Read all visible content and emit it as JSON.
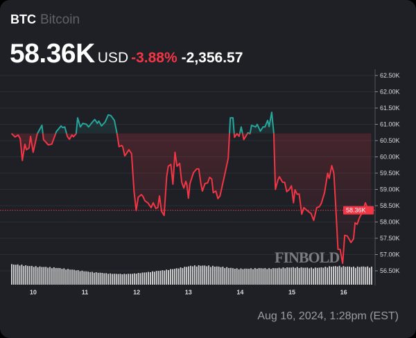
{
  "header": {
    "symbol": "BTC",
    "name": "Bitcoin",
    "price": "58.36K",
    "currency": "USD",
    "change_percent": "-3.88%",
    "change_abs": "-2,356.57"
  },
  "timestamp": "Aug 16, 2024, 1:28pm (EST)",
  "watermark": "FINBOLD",
  "colors": {
    "background": "#1e2026",
    "down": "#f23645",
    "up": "#26a69a",
    "grid": "#2b2e35",
    "volume": "#d9d9d9"
  },
  "chart_data": {
    "type": "line",
    "title": "",
    "xlabel": "",
    "ylabel": "",
    "x_ticks": [
      "10",
      "11",
      "12",
      "13",
      "14",
      "15",
      "16"
    ],
    "x_tick_values": [
      10,
      11,
      12,
      13,
      14,
      15,
      16
    ],
    "xlim": [
      9.56,
      16.54
    ],
    "y_ticks": [
      "62.50K",
      "62.00K",
      "61.50K",
      "61.00K",
      "60.50K",
      "60.00K",
      "59.50K",
      "59.00K",
      "58.50K",
      "58.00K",
      "57.50K",
      "57.00K",
      "56.50K"
    ],
    "y_tick_values": [
      62.5,
      62.0,
      61.5,
      61.0,
      60.5,
      60.0,
      59.5,
      59.0,
      58.5,
      58.0,
      57.5,
      57.0,
      56.5
    ],
    "ylim": [
      56.5,
      62.5
    ],
    "grid": true,
    "baseline": 60.72,
    "last_price": 58.36,
    "last_price_label": "58.36K",
    "x": [
      9.58,
      9.65,
      9.71,
      9.75,
      9.79,
      9.84,
      9.87,
      9.92,
      9.95,
      10.0,
      10.08,
      10.17,
      10.2,
      10.29,
      10.36,
      10.45,
      10.54,
      10.57,
      10.61,
      10.66,
      10.7,
      10.75,
      10.78,
      10.83,
      10.86,
      10.91,
      10.96,
      11.03,
      11.07,
      11.14,
      11.19,
      11.24,
      11.27,
      11.32,
      11.39,
      11.45,
      11.5,
      11.57,
      11.62,
      11.66,
      11.71,
      11.73,
      11.77,
      11.81,
      11.85,
      11.9,
      11.95,
      11.99,
      12.03,
      12.09,
      12.12,
      12.16,
      12.22,
      12.28,
      12.32,
      12.37,
      12.41,
      12.44,
      12.48,
      12.53,
      12.58,
      12.61,
      12.66,
      12.7,
      12.74,
      12.78,
      12.83,
      12.87,
      12.91,
      12.95,
      12.97,
      13.0,
      13.03,
      13.1,
      13.16,
      13.2,
      13.24,
      13.27,
      13.32,
      13.37,
      13.41,
      13.45,
      13.48,
      13.53,
      13.57,
      13.61,
      13.7,
      13.77,
      13.81,
      13.86,
      13.89,
      13.94,
      13.98,
      14.02,
      14.07,
      14.15,
      14.19,
      14.22,
      14.3,
      14.33,
      14.39,
      14.44,
      14.48,
      14.53,
      14.56,
      14.61,
      14.65,
      14.68,
      14.73,
      14.76,
      14.82,
      14.86,
      14.9,
      14.95,
      14.99,
      15.03,
      15.06,
      15.1,
      15.14,
      15.19,
      15.23,
      15.31,
      15.37,
      15.42,
      15.48,
      15.53,
      15.57,
      15.63,
      15.69,
      15.72,
      15.77,
      15.81,
      15.84,
      15.89,
      15.93,
      15.98,
      16.02,
      16.07,
      16.14,
      16.19,
      16.22,
      16.26,
      16.31,
      16.36,
      16.42,
      16.48,
      16.53
    ],
    "y": [
      60.72,
      60.61,
      60.67,
      60.56,
      59.89,
      60.39,
      60.22,
      60.27,
      60.63,
      60.14,
      60.71,
      60.97,
      60.53,
      60.37,
      60.39,
      60.78,
      60.95,
      60.9,
      60.92,
      60.63,
      60.54,
      60.67,
      60.62,
      60.71,
      61.2,
      60.92,
      61.03,
      61.0,
      60.92,
      61.06,
      61.15,
      61.03,
      61.1,
      60.95,
      61.07,
      61.29,
      61.27,
      61.12,
      60.71,
      60.31,
      60.35,
      60.31,
      60.03,
      60.12,
      60.22,
      60.1,
      58.93,
      58.35,
      58.76,
      58.84,
      58.79,
      58.65,
      58.58,
      58.44,
      58.59,
      58.42,
      58.44,
      58.8,
      58.33,
      58.2,
      59.39,
      59.71,
      59.77,
      59.16,
      60.14,
      59.71,
      59.8,
      59.22,
      59.04,
      59.25,
      59.14,
      58.73,
      59.18,
      59.52,
      59.63,
      59.63,
      59.18,
      58.95,
      59.18,
      59.2,
      59.37,
      59.32,
      58.9,
      58.95,
      58.72,
      58.8,
      59.44,
      59.96,
      61.2,
      61.2,
      60.6,
      60.71,
      60.63,
      60.92,
      60.53,
      60.74,
      60.71,
      60.97,
      60.92,
      61.0,
      60.79,
      60.92,
      60.92,
      61.12,
      60.93,
      61.37,
      60.72,
      59.0,
      59.29,
      59.39,
      59.22,
      59.22,
      58.93,
      59.0,
      59.11,
      58.59,
      58.99,
      58.85,
      58.86,
      58.24,
      58.44,
      58.33,
      58.26,
      58.05,
      58.44,
      58.47,
      58.58,
      58.9,
      59.5,
      59.34,
      59.73,
      59.5,
      58.65,
      57.16,
      57.16,
      56.73,
      57.59,
      57.57,
      57.37,
      57.48,
      57.97,
      57.93,
      58.15,
      58.29,
      58.59,
      58.35,
      58.37
    ],
    "volume_relative": [
      1.0,
      0.97,
      0.9,
      0.85,
      0.82,
      0.78,
      0.72,
      0.65,
      0.58,
      0.5,
      0.45,
      0.4,
      0.36,
      0.35,
      0.36,
      0.42,
      0.48,
      0.55,
      0.62,
      0.7,
      0.8,
      0.9,
      0.92,
      0.9,
      0.85,
      0.8,
      0.72,
      0.7,
      0.72,
      0.74,
      0.72,
      0.75,
      0.78,
      0.8,
      0.78,
      0.76,
      0.78,
      0.85,
      0.88,
      0.85,
      0.82,
      0.85,
      0.82
    ]
  }
}
